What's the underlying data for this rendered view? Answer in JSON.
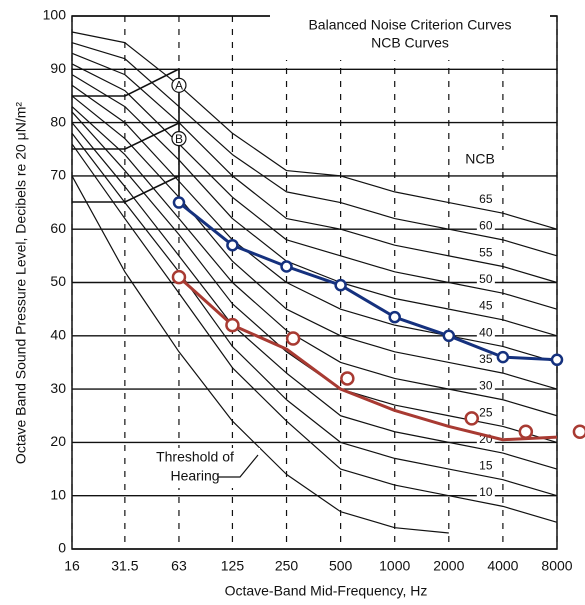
{
  "chart_data": {
    "type": "line",
    "title": "Balanced Noise Criterion Curves",
    "subtitle": "NCB Curves",
    "curve_label": "NCB",
    "xlabel": "Octave-Band Mid-Frequency, Hz",
    "ylabel": "Octave Band Sound Pressure Level, Decibels re 20 μN/m²",
    "xscale": "log",
    "xlim": [
      16,
      8000
    ],
    "xticks": [
      16,
      31.5,
      63,
      125,
      250,
      500,
      1000,
      2000,
      4000,
      8000
    ],
    "ylim": [
      0,
      100
    ],
    "yticks": [
      0,
      10,
      20,
      30,
      40,
      50,
      60,
      70,
      80,
      90,
      100
    ],
    "grid": true,
    "x": [
      16,
      31.5,
      63,
      125,
      250,
      500,
      1000,
      2000,
      4000,
      8000
    ],
    "curves": [
      {
        "name": "10",
        "color": "#111111",
        "values": [
          76,
          62,
          48,
          34,
          24,
          15,
          12,
          10,
          8,
          5
        ]
      },
      {
        "name": "15",
        "color": "#111111",
        "values": [
          78,
          65,
          52,
          38,
          28,
          20,
          17,
          15,
          13,
          10
        ]
      },
      {
        "name": "20",
        "color": "#111111",
        "values": [
          80,
          68,
          55,
          42,
          33,
          25,
          22,
          20,
          18,
          15
        ]
      },
      {
        "name": "25",
        "color": "#111111",
        "values": [
          82,
          71,
          59,
          46,
          37,
          30,
          27,
          25,
          23,
          20
        ]
      },
      {
        "name": "30",
        "color": "#111111",
        "values": [
          83,
          74,
          62,
          50,
          41,
          35,
          32,
          30,
          28,
          25
        ]
      },
      {
        "name": "35",
        "color": "#111111",
        "values": [
          85,
          77,
          66,
          54,
          45,
          40,
          37,
          35,
          33,
          30
        ]
      },
      {
        "name": "40",
        "color": "#111111",
        "values": [
          87,
          80,
          69,
          58,
          50,
          45,
          42,
          40,
          38,
          35
        ]
      },
      {
        "name": "45",
        "color": "#111111",
        "values": [
          89,
          83,
          73,
          62,
          54,
          50,
          47,
          45,
          43,
          40
        ]
      },
      {
        "name": "50",
        "color": "#111111",
        "values": [
          91,
          86,
          76,
          66,
          58,
          55,
          52,
          50,
          48,
          45
        ]
      },
      {
        "name": "55",
        "color": "#111111",
        "values": [
          93,
          89,
          80,
          70,
          62,
          60,
          57,
          55,
          53,
          50
        ]
      },
      {
        "name": "60",
        "color": "#111111",
        "values": [
          95,
          92,
          83,
          74,
          67,
          65,
          62,
          60,
          58,
          55
        ]
      },
      {
        "name": "65",
        "color": "#111111",
        "values": [
          97,
          95,
          87,
          78,
          71,
          70,
          67,
          65,
          63,
          60
        ]
      }
    ],
    "threshold": {
      "label": [
        "Threshold of",
        "Hearing"
      ],
      "color": "#111111",
      "values": [
        70,
        52,
        37,
        24,
        14,
        7,
        4,
        3,
        null,
        null
      ]
    },
    "series": [
      {
        "color": "#15317e",
        "marker": "filled",
        "values": [
          null,
          null,
          65,
          57,
          53,
          49.5,
          43.5,
          40,
          36,
          35.5
        ]
      },
      {
        "color": "#a83a32",
        "marker": "none",
        "values": [
          null,
          null,
          51,
          42,
          37.5,
          30,
          26,
          23,
          20.5,
          21
        ]
      },
      {
        "color": "#a83a32",
        "marker": "hollow",
        "x": [
          63,
          125,
          272,
          545,
          2683,
          5365,
          10730
        ],
        "values": [
          51,
          42,
          39.5,
          32,
          24.5,
          22,
          22
        ]
      }
    ],
    "annotations": [
      {
        "text": "A",
        "x": 63,
        "y": 87
      },
      {
        "text": "B",
        "x": 63,
        "y": 77
      }
    ]
  }
}
